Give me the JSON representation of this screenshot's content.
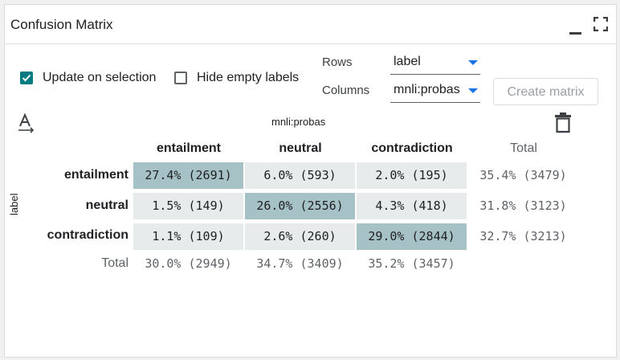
{
  "panel": {
    "title": "Confusion Matrix",
    "minimize_icon": "minimize-icon",
    "fullscreen_icon": "fullscreen-icon"
  },
  "controls": {
    "update_on_selection": {
      "label": "Update on selection",
      "checked": true
    },
    "hide_empty_labels": {
      "label": "Hide empty labels",
      "checked": false
    },
    "rows_label": "Rows",
    "rows_value": "label",
    "columns_label": "Columns",
    "columns_value": "mnli:probas",
    "create_button": "Create matrix",
    "text_icon": "text-format-icon",
    "delete_icon": "trash-icon"
  },
  "matrix": {
    "column_axis_title": "mnli:probas",
    "row_axis_title": "label",
    "column_headers": [
      "entailment",
      "neutral",
      "contradiction",
      "Total"
    ],
    "row_headers": [
      "entailment",
      "neutral",
      "contradiction",
      "Total"
    ],
    "rows": [
      [
        "27.4% (2691)",
        "6.0% (593)",
        "2.0% (195)",
        "35.4% (3479)"
      ],
      [
        "1.5% (149)",
        "26.0% (2556)",
        "4.3% (418)",
        "31.8% (3123)"
      ],
      [
        "1.1% (109)",
        "2.6% (260)",
        "29.0% (2844)",
        "32.7% (3213)"
      ],
      [
        "30.0% (2949)",
        "34.7% (3409)",
        "35.2% (3457)",
        ""
      ]
    ]
  },
  "colors": {
    "accent": "#007b83",
    "diagonal": "#a7c2c6",
    "offdiagonal": "#e8ebeb",
    "dropdown_arrow": "#1a73e8"
  }
}
